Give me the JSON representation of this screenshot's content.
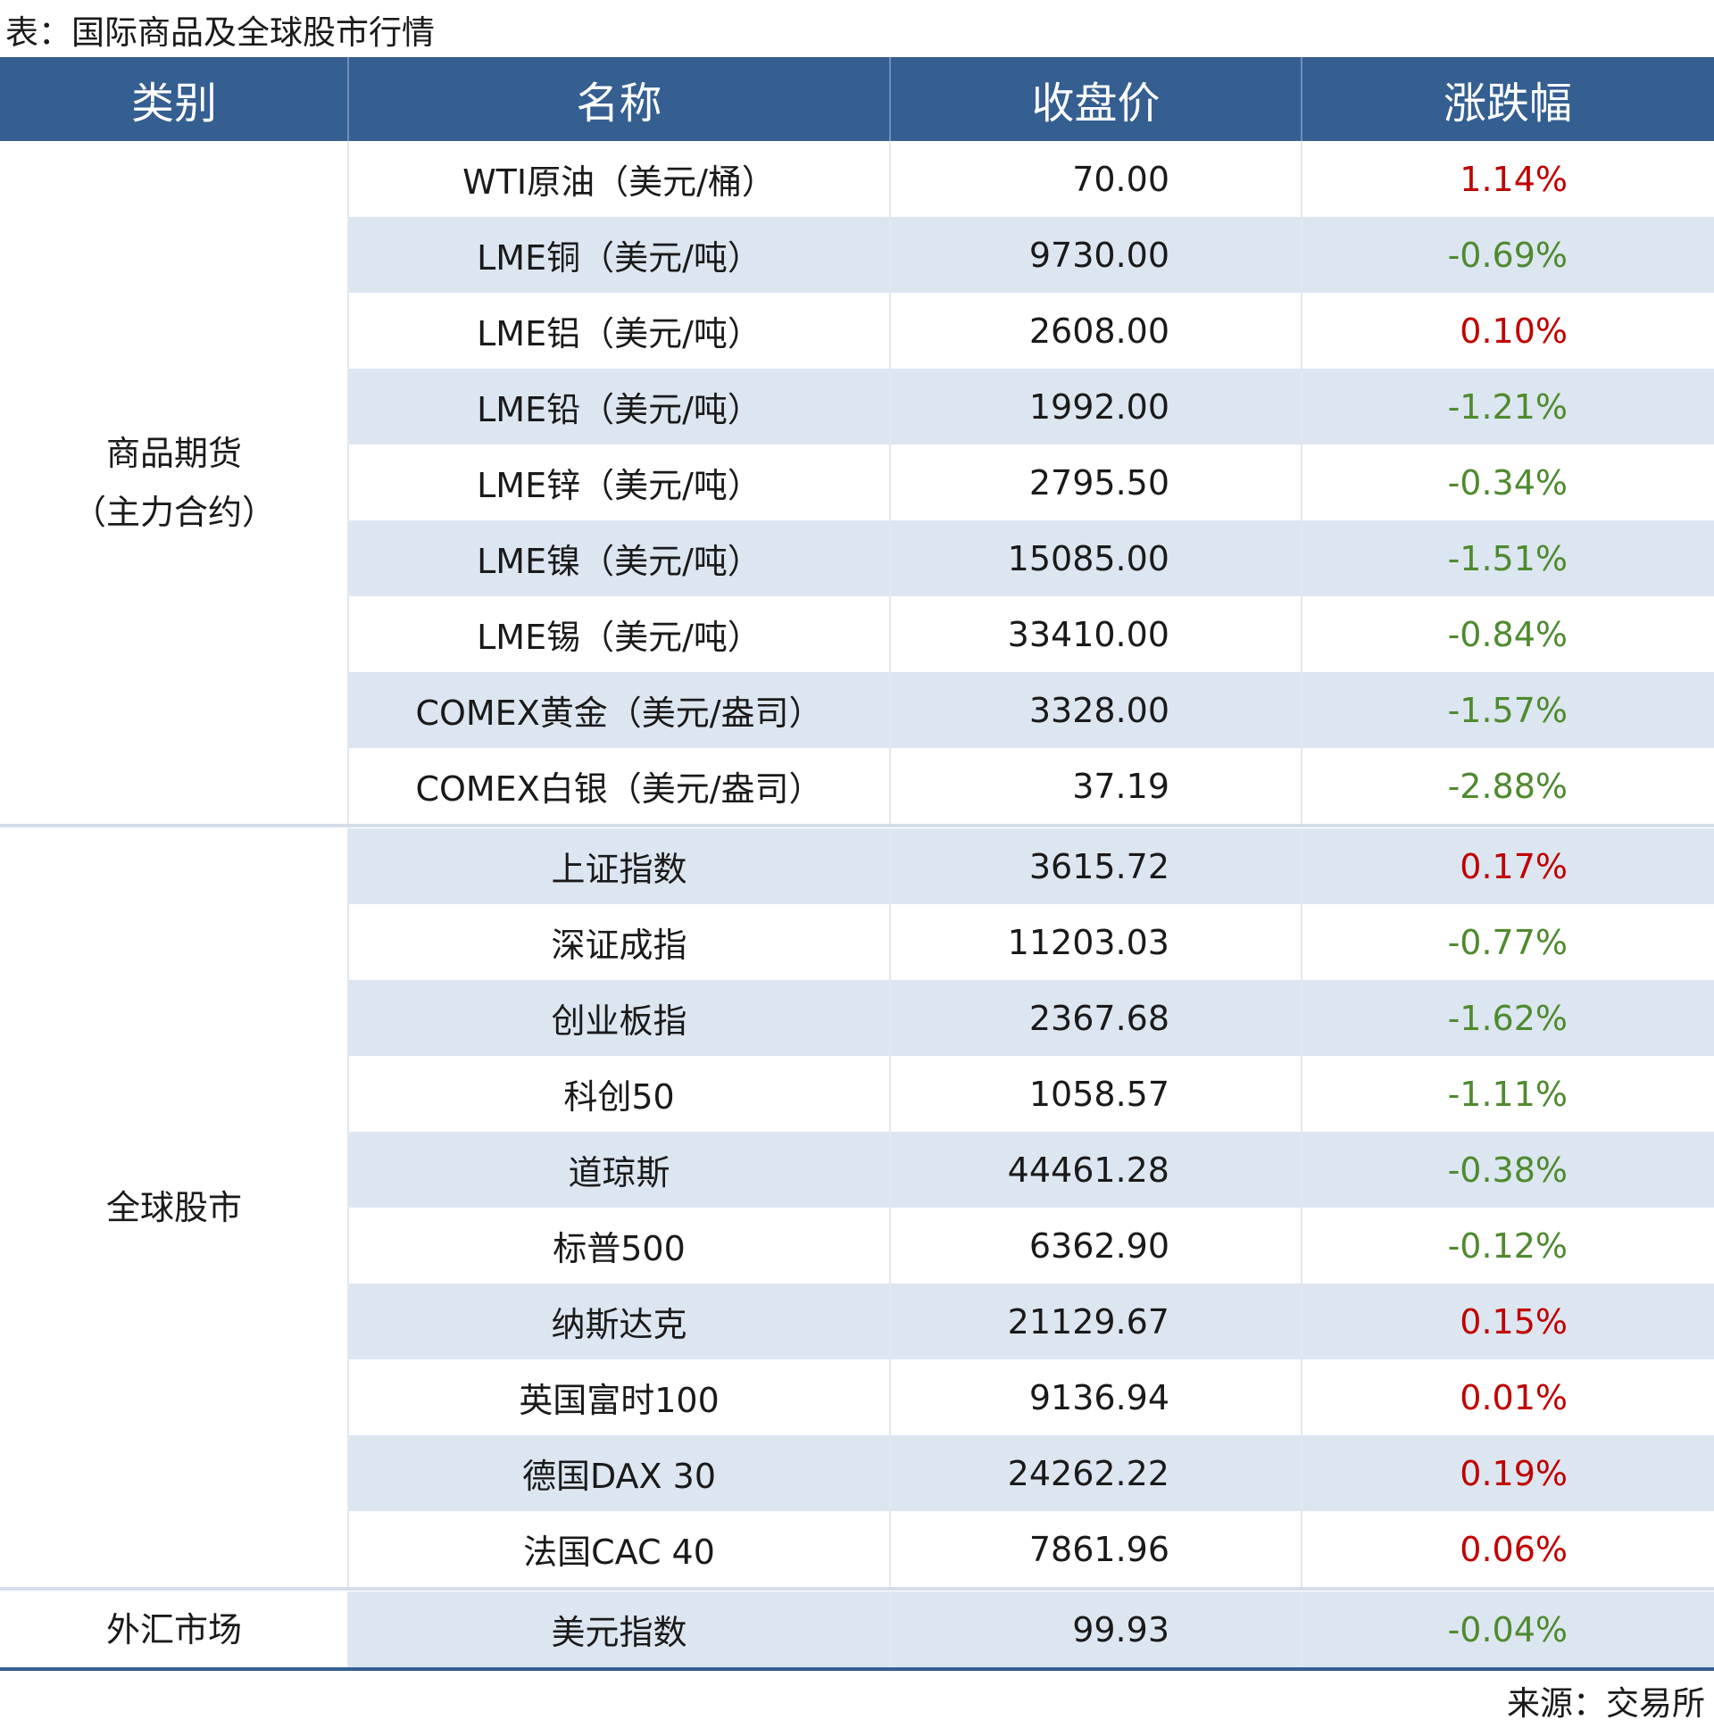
{
  "title": "表：国际商品及全球股市行情",
  "table": {
    "header": [
      "类别",
      "名称",
      "收盘价",
      "涨跌幅"
    ],
    "groups": [
      {
        "category": [
          "商品期货",
          "（主力合约）"
        ],
        "rows": [
          [
            "WTI原油（美元/桶）",
            "70.00",
            "1.14%"
          ],
          [
            "LME铜（美元/吨）",
            "9730.00",
            "-0.69%"
          ],
          [
            "LME铝（美元/吨）",
            "2608.00",
            "0.10%"
          ],
          [
            "LME铅（美元/吨）",
            "1992.00",
            "-1.21%"
          ],
          [
            "LME锌（美元/吨）",
            "2795.50",
            "-0.34%"
          ],
          [
            "LME镍（美元/吨）",
            "15085.00",
            "-1.51%"
          ],
          [
            "LME锡（美元/吨）",
            "33410.00",
            "-0.84%"
          ],
          [
            "COMEX黄金（美元/盎司）",
            "3328.00",
            "-1.57%"
          ],
          [
            "COMEX白银（美元/盎司）",
            "37.19",
            "-2.88%"
          ]
        ]
      },
      {
        "category": [
          "全球股市"
        ],
        "rows": [
          [
            "上证指数",
            "3615.72",
            "0.17%"
          ],
          [
            "深证成指",
            "11203.03",
            "-0.77%"
          ],
          [
            "创业板指",
            "2367.68",
            "-1.62%"
          ],
          [
            "科创50",
            "1058.57",
            "-1.11%"
          ],
          [
            "道琼斯",
            "44461.28",
            "-0.38%"
          ],
          [
            "标普500",
            "6362.90",
            "-0.12%"
          ],
          [
            "纳斯达克",
            "21129.67",
            "0.15%"
          ],
          [
            "英国富时100",
            "9136.94",
            "0.01%"
          ],
          [
            "德国DAX 30",
            "24262.22",
            "0.19%"
          ],
          [
            "法国CAC 40",
            "7861.96",
            "0.06%"
          ]
        ]
      },
      {
        "category": [
          "外汇市场"
        ],
        "rows": [
          [
            "美元指数",
            "99.93",
            "-0.04%"
          ]
        ]
      }
    ]
  },
  "source": "来源：交易所"
}
